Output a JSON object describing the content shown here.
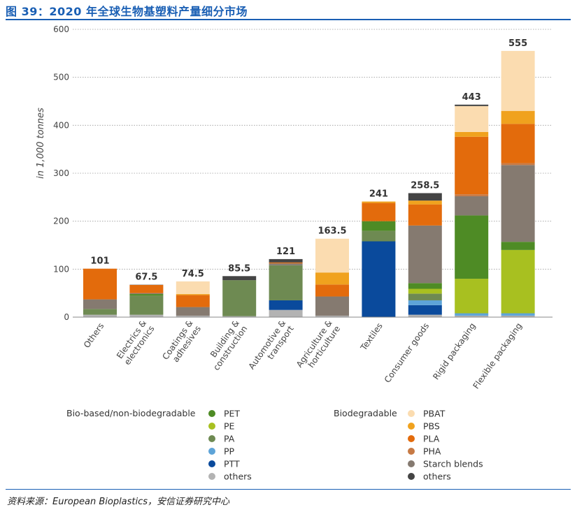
{
  "figure": {
    "title": "图 39：2020 年全球生物基塑料产量细分市场",
    "source": "资料来源：European Bioplastics，安信证券研究中心"
  },
  "chart_data": {
    "type": "bar",
    "stacked": true,
    "ylabel": "in 1,000 tonnes",
    "ylim": [
      0,
      600
    ],
    "yticks": [
      0,
      100,
      200,
      300,
      400,
      500,
      600
    ],
    "grid": true,
    "categories": [
      "Others",
      "Electrics & electronics",
      "Coatings & adhesives",
      "Building & construction",
      "Automotive & transport",
      "Agriculture & horticulture",
      "Textiles",
      "Consumer goods",
      "Rigid packaging",
      "Flexible packaging"
    ],
    "totals": [
      "101",
      "67.5",
      "74.5",
      "85.5",
      "121",
      "163.5",
      "241",
      "258.5",
      "443",
      "555"
    ],
    "legend_groups": [
      {
        "label": "Bio-based/non-biodegradable",
        "series": [
          "PET",
          "PE",
          "PA",
          "PP",
          "PTT",
          "others"
        ]
      },
      {
        "label": "Biodegradable",
        "series": [
          "PBAT",
          "PBS",
          "PLA",
          "PHA",
          "Starch blends",
          "others"
        ]
      }
    ],
    "series": [
      {
        "name": "others",
        "color": "#b3b3b3",
        "values": [
          5,
          5,
          3,
          2,
          15,
          3,
          0,
          5,
          3,
          3
        ]
      },
      {
        "name": "PTT",
        "color": "#0a4a9c",
        "values": [
          0,
          0,
          0,
          0,
          20,
          0,
          158,
          20,
          0,
          0
        ]
      },
      {
        "name": "PP",
        "color": "#5ea4d8",
        "values": [
          0,
          0,
          0,
          0,
          0,
          0,
          0,
          10,
          5,
          5
        ]
      },
      {
        "name": "PA",
        "color": "#6e8a52",
        "values": [
          12,
          40,
          0,
          75,
          73,
          0,
          22,
          14,
          0,
          0
        ]
      },
      {
        "name": "PE",
        "color": "#a8c020",
        "values": [
          0,
          0,
          0,
          0,
          0,
          0,
          0,
          10,
          72,
          132
        ]
      },
      {
        "name": "PET",
        "color": "#4e8b25",
        "values": [
          0,
          3,
          0,
          0,
          0,
          0,
          20,
          12,
          132,
          17
        ]
      },
      {
        "name": "Starch blends",
        "color": "#857a70",
        "values": [
          20,
          2,
          18,
          0,
          4,
          40,
          0,
          120,
          40,
          160
        ]
      },
      {
        "name": "PHA",
        "color": "#c77a45",
        "values": [
          0,
          0,
          0,
          0,
          0,
          0,
          0,
          0,
          4,
          4
        ]
      },
      {
        "name": "PLA",
        "color": "#e36b0c",
        "values": [
          64,
          17,
          25,
          0,
          2,
          25,
          38,
          44,
          120,
          82
        ]
      },
      {
        "name": "PBS",
        "color": "#f0a21e",
        "values": [
          0,
          0,
          2,
          0,
          0,
          25,
          3,
          8,
          10,
          27
        ]
      },
      {
        "name": "PBAT",
        "color": "#fbdcb0",
        "values": [
          0,
          0,
          26.5,
          0,
          0,
          70.5,
          0,
          0,
          54,
          125
        ]
      },
      {
        "name": "others",
        "color": "#444444",
        "values": [
          0,
          0.5,
          0,
          8.5,
          7,
          0,
          0,
          15.5,
          3,
          0
        ]
      }
    ]
  }
}
